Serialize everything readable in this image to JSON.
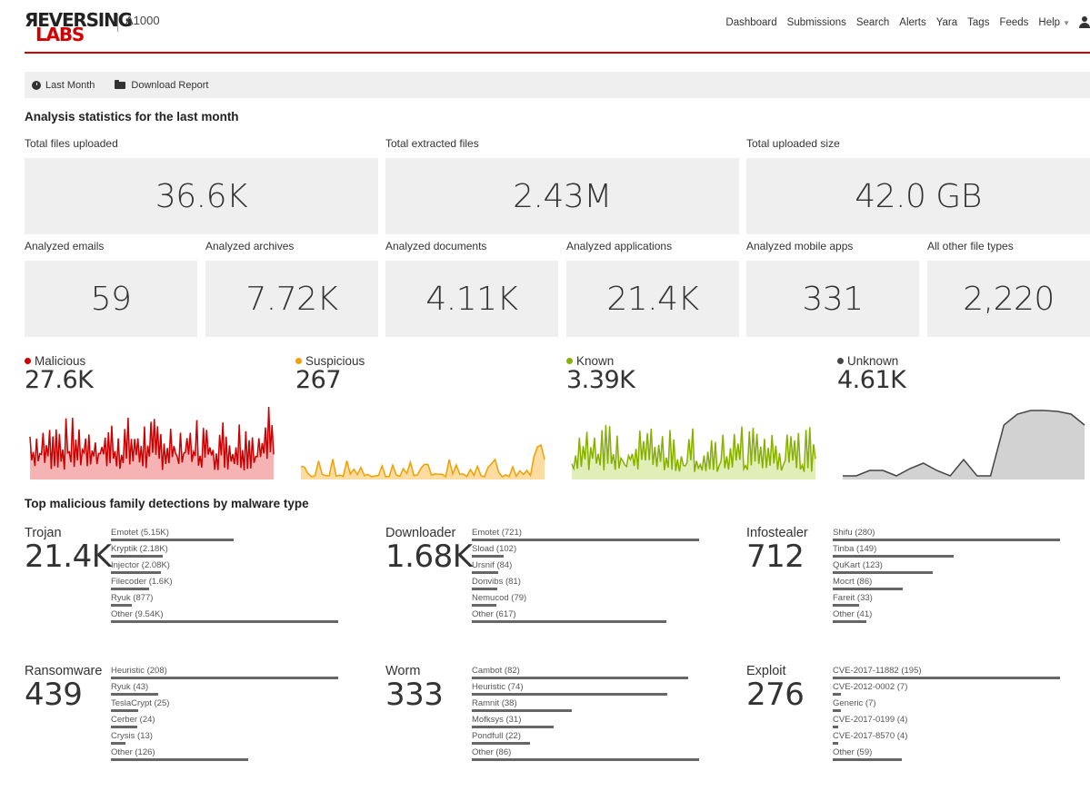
{
  "header": {
    "logo_top": "ЯEVERSING",
    "logo_bottom": "LABS",
    "product": "A1000",
    "nav": [
      "Dashboard",
      "Submissions",
      "Search",
      "Alerts",
      "Yara",
      "Tags",
      "Feeds",
      "Help"
    ]
  },
  "toolbar": {
    "period_label": "Last Month",
    "download_label": "Download Report"
  },
  "stats_title": "Analysis statistics for the last month",
  "stats_top": [
    {
      "label": "Total files uploaded",
      "value": "36.6K"
    },
    {
      "label": "Total extracted files",
      "value": "2.43M"
    },
    {
      "label": "Total uploaded size",
      "value": "42.0 GB"
    }
  ],
  "stats_bottom": [
    {
      "label": "Analyzed emails",
      "value": "59"
    },
    {
      "label": "Analyzed archives",
      "value": "7.72K"
    },
    {
      "label": "Analyzed documents",
      "value": "4.11K"
    },
    {
      "label": "Analyzed applications",
      "value": "21.4K"
    },
    {
      "label": "Analyzed mobile apps",
      "value": "331"
    },
    {
      "label": "All other file types",
      "value": "2,220"
    }
  ],
  "verdicts": [
    {
      "name": "Malicious",
      "value": "27.6K",
      "color": "#cc0000",
      "fill": "#f5b3b3"
    },
    {
      "name": "Suspicious",
      "value": "267",
      "color": "#f0a000",
      "fill": "#fcdca0"
    },
    {
      "name": "Known",
      "value": "3.39K",
      "color": "#88b000",
      "fill": "#e0eeb8"
    },
    {
      "name": "Unknown",
      "value": "4.61K",
      "color": "#444444",
      "fill": "#d2d2d2"
    }
  ],
  "families_title": "Top malicious family detections by malware type",
  "families": [
    {
      "type": "Trojan",
      "total": "21.4K",
      "items": [
        {
          "label": "Emotet (5.15K)",
          "value": 5150
        },
        {
          "label": "Kryptik (2.18K)",
          "value": 2180
        },
        {
          "label": "Injector (2.08K)",
          "value": 2080
        },
        {
          "label": "Filecoder (1.6K)",
          "value": 1600
        },
        {
          "label": "Ryuk (877)",
          "value": 877
        },
        {
          "label": "Other (9.54K)",
          "value": 9540
        }
      ]
    },
    {
      "type": "Downloader",
      "total": "1.68K",
      "items": [
        {
          "label": "Emotet (721)",
          "value": 721
        },
        {
          "label": "Sload (102)",
          "value": 102
        },
        {
          "label": "Ursnif (84)",
          "value": 84
        },
        {
          "label": "Donvibs (81)",
          "value": 81
        },
        {
          "label": "Nemucod (79)",
          "value": 79
        },
        {
          "label": "Other (617)",
          "value": 617
        }
      ]
    },
    {
      "type": "Infostealer",
      "total": "712",
      "items": [
        {
          "label": "Shifu (280)",
          "value": 280
        },
        {
          "label": "Tinba (149)",
          "value": 149
        },
        {
          "label": "QuKart (123)",
          "value": 123
        },
        {
          "label": "Mocrt (86)",
          "value": 86
        },
        {
          "label": "Fareit (33)",
          "value": 33
        },
        {
          "label": "Other (41)",
          "value": 41
        }
      ]
    },
    {
      "type": "Ransomware",
      "total": "439",
      "items": [
        {
          "label": "Heuristic (208)",
          "value": 208
        },
        {
          "label": "Ryuk (43)",
          "value": 43
        },
        {
          "label": "TeslaCrypt (25)",
          "value": 25
        },
        {
          "label": "Cerber (24)",
          "value": 24
        },
        {
          "label": "Crysis (13)",
          "value": 13
        },
        {
          "label": "Other (126)",
          "value": 126
        }
      ]
    },
    {
      "type": "Worm",
      "total": "333",
      "items": [
        {
          "label": "Cambot (82)",
          "value": 82
        },
        {
          "label": "Heuristic (74)",
          "value": 74
        },
        {
          "label": "Ramnit (38)",
          "value": 38
        },
        {
          "label": "Mofksys (31)",
          "value": 31
        },
        {
          "label": "Pondfull (22)",
          "value": 22
        },
        {
          "label": "Other (86)",
          "value": 86
        }
      ]
    },
    {
      "type": "Exploit",
      "total": "276",
      "items": [
        {
          "label": "CVE-2017-11882 (195)",
          "value": 195
        },
        {
          "label": "CVE-2012-0002 (7)",
          "value": 7
        },
        {
          "label": "Generic (7)",
          "value": 7
        },
        {
          "label": "CVE-2017-0199 (4)",
          "value": 4
        },
        {
          "label": "CVE-2017-8570 (4)",
          "value": 4
        },
        {
          "label": "Other (59)",
          "value": 59
        }
      ]
    }
  ]
}
